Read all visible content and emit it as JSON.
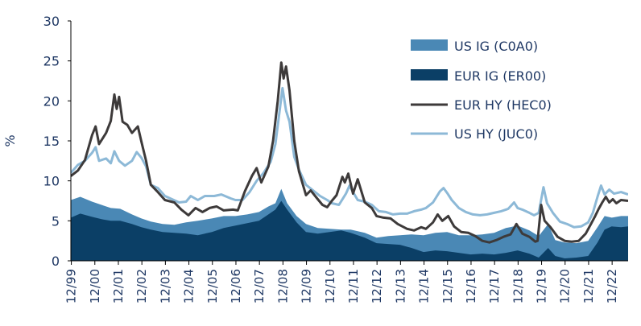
{
  "chart_data": {
    "type": "area",
    "ylabel": "%",
    "ylim": [
      0,
      30
    ],
    "yticks": [
      "0",
      "5",
      "10",
      "15",
      "20",
      "25",
      "30"
    ],
    "x_tick_labels": [
      "12/99",
      "12/00",
      "12/01",
      "12/02",
      "12/03",
      "12/04",
      "12/05",
      "12/06",
      "12/07",
      "12/08",
      "12/09",
      "12/10",
      "12/11",
      "12/12",
      "12/13",
      "12/14",
      "12/15",
      "12/16",
      "12/17",
      "12/18",
      "12/19",
      "12/20",
      "12/21",
      "12/22"
    ],
    "x_range": [
      1999.9,
      2023.6
    ],
    "legend_position": "top-right",
    "series": [
      {
        "name": "US IG (C0A0)",
        "style": "area",
        "color": "#4a88b5",
        "points": [
          [
            1999.9,
            7.6
          ],
          [
            2000.3,
            8.0
          ],
          [
            2000.8,
            7.4
          ],
          [
            2001.2,
            7.0
          ],
          [
            2001.6,
            6.6
          ],
          [
            2002.0,
            6.5
          ],
          [
            2002.5,
            5.8
          ],
          [
            2002.9,
            5.3
          ],
          [
            2003.3,
            4.9
          ],
          [
            2003.8,
            4.6
          ],
          [
            2004.3,
            4.5
          ],
          [
            2004.8,
            4.8
          ],
          [
            2005.3,
            5.0
          ],
          [
            2005.9,
            5.3
          ],
          [
            2006.4,
            5.6
          ],
          [
            2006.9,
            5.6
          ],
          [
            2007.4,
            5.8
          ],
          [
            2007.9,
            6.1
          ],
          [
            2008.3,
            6.8
          ],
          [
            2008.6,
            7.2
          ],
          [
            2008.85,
            9.0
          ],
          [
            2009.1,
            7.2
          ],
          [
            2009.5,
            5.6
          ],
          [
            2009.9,
            4.6
          ],
          [
            2010.4,
            4.1
          ],
          [
            2010.9,
            4.0
          ],
          [
            2011.4,
            3.9
          ],
          [
            2011.8,
            3.9
          ],
          [
            2012.4,
            3.5
          ],
          [
            2012.9,
            2.9
          ],
          [
            2013.4,
            3.1
          ],
          [
            2013.9,
            3.2
          ],
          [
            2014.4,
            3.3
          ],
          [
            2014.9,
            3.2
          ],
          [
            2015.4,
            3.5
          ],
          [
            2015.9,
            3.6
          ],
          [
            2016.4,
            3.2
          ],
          [
            2016.9,
            3.2
          ],
          [
            2017.4,
            3.3
          ],
          [
            2017.9,
            3.5
          ],
          [
            2018.4,
            4.1
          ],
          [
            2018.9,
            4.4
          ],
          [
            2019.4,
            3.8
          ],
          [
            2019.8,
            3.1
          ],
          [
            2020.2,
            4.6
          ],
          [
            2020.5,
            2.6
          ],
          [
            2020.9,
            2.3
          ],
          [
            2021.4,
            2.2
          ],
          [
            2021.9,
            2.5
          ],
          [
            2022.3,
            4.2
          ],
          [
            2022.6,
            5.6
          ],
          [
            2022.9,
            5.4
          ],
          [
            2023.3,
            5.6
          ],
          [
            2023.6,
            5.6
          ]
        ]
      },
      {
        "name": "EUR IG (ER00)",
        "style": "area",
        "color": "#0b3f66",
        "points": [
          [
            1999.9,
            5.4
          ],
          [
            2000.3,
            5.9
          ],
          [
            2000.8,
            5.5
          ],
          [
            2001.2,
            5.2
          ],
          [
            2001.6,
            5.0
          ],
          [
            2002.0,
            5.0
          ],
          [
            2002.5,
            4.6
          ],
          [
            2002.9,
            4.2
          ],
          [
            2003.3,
            3.9
          ],
          [
            2003.8,
            3.6
          ],
          [
            2004.3,
            3.5
          ],
          [
            2004.8,
            3.4
          ],
          [
            2005.3,
            3.2
          ],
          [
            2005.9,
            3.6
          ],
          [
            2006.4,
            4.1
          ],
          [
            2006.9,
            4.4
          ],
          [
            2007.4,
            4.7
          ],
          [
            2007.9,
            5.0
          ],
          [
            2008.3,
            5.8
          ],
          [
            2008.6,
            6.4
          ],
          [
            2008.85,
            7.5
          ],
          [
            2009.1,
            6.4
          ],
          [
            2009.5,
            4.8
          ],
          [
            2009.9,
            3.6
          ],
          [
            2010.4,
            3.4
          ],
          [
            2010.9,
            3.6
          ],
          [
            2011.4,
            3.8
          ],
          [
            2011.8,
            3.5
          ],
          [
            2012.4,
            2.9
          ],
          [
            2012.9,
            2.2
          ],
          [
            2013.4,
            2.1
          ],
          [
            2013.9,
            2.0
          ],
          [
            2014.4,
            1.6
          ],
          [
            2014.9,
            1.1
          ],
          [
            2015.4,
            1.3
          ],
          [
            2015.9,
            1.2
          ],
          [
            2016.4,
            1.0
          ],
          [
            2016.9,
            0.8
          ],
          [
            2017.4,
            0.9
          ],
          [
            2017.9,
            0.8
          ],
          [
            2018.4,
            1.0
          ],
          [
            2018.9,
            1.3
          ],
          [
            2019.4,
            0.9
          ],
          [
            2019.8,
            0.4
          ],
          [
            2020.2,
            1.6
          ],
          [
            2020.5,
            0.6
          ],
          [
            2020.9,
            0.3
          ],
          [
            2021.4,
            0.4
          ],
          [
            2021.9,
            0.6
          ],
          [
            2022.3,
            2.3
          ],
          [
            2022.6,
            3.9
          ],
          [
            2022.9,
            4.3
          ],
          [
            2023.3,
            4.2
          ],
          [
            2023.6,
            4.3
          ]
        ]
      },
      {
        "name": "EUR HY (HEC0)",
        "style": "line",
        "color": "#3d3a3a",
        "points": [
          [
            1999.9,
            10.6
          ],
          [
            2000.2,
            11.3
          ],
          [
            2000.5,
            12.6
          ],
          [
            2000.8,
            15.7
          ],
          [
            2000.95,
            16.8
          ],
          [
            2001.1,
            14.6
          ],
          [
            2001.4,
            16.0
          ],
          [
            2001.6,
            17.5
          ],
          [
            2001.75,
            20.8
          ],
          [
            2001.85,
            19.0
          ],
          [
            2001.95,
            20.5
          ],
          [
            2002.1,
            17.4
          ],
          [
            2002.3,
            17.0
          ],
          [
            2002.5,
            16.0
          ],
          [
            2002.75,
            16.8
          ],
          [
            2002.9,
            14.9
          ],
          [
            2003.1,
            12.5
          ],
          [
            2003.3,
            9.5
          ],
          [
            2003.6,
            8.6
          ],
          [
            2003.9,
            7.6
          ],
          [
            2004.3,
            7.3
          ],
          [
            2004.6,
            6.4
          ],
          [
            2004.9,
            5.7
          ],
          [
            2005.2,
            6.6
          ],
          [
            2005.5,
            6.1
          ],
          [
            2005.8,
            6.6
          ],
          [
            2006.1,
            6.8
          ],
          [
            2006.4,
            6.3
          ],
          [
            2006.8,
            6.4
          ],
          [
            2007.0,
            6.3
          ],
          [
            2007.3,
            8.7
          ],
          [
            2007.6,
            10.6
          ],
          [
            2007.8,
            11.6
          ],
          [
            2008.0,
            9.8
          ],
          [
            2008.3,
            11.8
          ],
          [
            2008.5,
            15.0
          ],
          [
            2008.7,
            20.0
          ],
          [
            2008.85,
            24.8
          ],
          [
            2008.95,
            22.8
          ],
          [
            2009.05,
            24.3
          ],
          [
            2009.2,
            21.3
          ],
          [
            2009.4,
            15.0
          ],
          [
            2009.6,
            11.2
          ],
          [
            2009.9,
            8.2
          ],
          [
            2010.1,
            8.8
          ],
          [
            2010.4,
            7.7
          ],
          [
            2010.6,
            7.0
          ],
          [
            2010.8,
            6.7
          ],
          [
            2011.0,
            7.5
          ],
          [
            2011.2,
            8.2
          ],
          [
            2011.45,
            10.5
          ],
          [
            2011.55,
            9.8
          ],
          [
            2011.7,
            10.9
          ],
          [
            2011.9,
            8.4
          ],
          [
            2012.1,
            10.2
          ],
          [
            2012.4,
            7.3
          ],
          [
            2012.7,
            6.6
          ],
          [
            2012.9,
            5.6
          ],
          [
            2013.2,
            5.4
          ],
          [
            2013.5,
            5.3
          ],
          [
            2013.8,
            4.6
          ],
          [
            2014.2,
            4.0
          ],
          [
            2014.5,
            3.8
          ],
          [
            2014.8,
            4.2
          ],
          [
            2015.0,
            4.0
          ],
          [
            2015.3,
            4.8
          ],
          [
            2015.5,
            5.8
          ],
          [
            2015.7,
            5.0
          ],
          [
            2015.95,
            5.6
          ],
          [
            2016.2,
            4.3
          ],
          [
            2016.5,
            3.6
          ],
          [
            2016.8,
            3.5
          ],
          [
            2017.1,
            3.1
          ],
          [
            2017.4,
            2.5
          ],
          [
            2017.7,
            2.3
          ],
          [
            2018.0,
            2.6
          ],
          [
            2018.3,
            3.0
          ],
          [
            2018.6,
            3.3
          ],
          [
            2018.85,
            4.6
          ],
          [
            2019.1,
            3.4
          ],
          [
            2019.4,
            3.0
          ],
          [
            2019.65,
            2.4
          ],
          [
            2019.75,
            2.5
          ],
          [
            2019.9,
            7.0
          ],
          [
            2020.05,
            5.0
          ],
          [
            2020.3,
            4.2
          ],
          [
            2020.6,
            3.0
          ],
          [
            2020.9,
            2.5
          ],
          [
            2021.2,
            2.4
          ],
          [
            2021.5,
            2.5
          ],
          [
            2021.8,
            3.4
          ],
          [
            2022.0,
            4.5
          ],
          [
            2022.2,
            5.6
          ],
          [
            2022.35,
            6.5
          ],
          [
            2022.5,
            7.3
          ],
          [
            2022.65,
            8.0
          ],
          [
            2022.8,
            7.3
          ],
          [
            2022.95,
            7.7
          ],
          [
            2023.1,
            7.2
          ],
          [
            2023.3,
            7.6
          ],
          [
            2023.6,
            7.5
          ]
        ]
      },
      {
        "name": "US HY (JUC0)",
        "style": "line",
        "color": "#8db9d7",
        "points": [
          [
            1999.9,
            11.0
          ],
          [
            2000.2,
            12.0
          ],
          [
            2000.5,
            12.5
          ],
          [
            2000.8,
            13.5
          ],
          [
            2000.95,
            14.2
          ],
          [
            2001.1,
            12.5
          ],
          [
            2001.4,
            12.8
          ],
          [
            2001.6,
            12.2
          ],
          [
            2001.75,
            13.7
          ],
          [
            2001.95,
            12.5
          ],
          [
            2002.2,
            11.9
          ],
          [
            2002.5,
            12.5
          ],
          [
            2002.7,
            13.6
          ],
          [
            2002.9,
            12.9
          ],
          [
            2003.1,
            11.8
          ],
          [
            2003.3,
            9.5
          ],
          [
            2003.6,
            9.1
          ],
          [
            2003.9,
            8.1
          ],
          [
            2004.2,
            7.7
          ],
          [
            2004.5,
            7.3
          ],
          [
            2004.8,
            7.4
          ],
          [
            2005.0,
            8.1
          ],
          [
            2005.3,
            7.6
          ],
          [
            2005.6,
            8.1
          ],
          [
            2006.0,
            8.1
          ],
          [
            2006.3,
            8.3
          ],
          [
            2006.7,
            7.8
          ],
          [
            2006.9,
            7.6
          ],
          [
            2007.2,
            7.6
          ],
          [
            2007.5,
            8.6
          ],
          [
            2007.8,
            10.0
          ],
          [
            2008.1,
            11.0
          ],
          [
            2008.4,
            12.4
          ],
          [
            2008.6,
            14.6
          ],
          [
            2008.8,
            19.3
          ],
          [
            2008.9,
            21.6
          ],
          [
            2009.05,
            18.8
          ],
          [
            2009.2,
            17.4
          ],
          [
            2009.4,
            13.0
          ],
          [
            2009.6,
            11.4
          ],
          [
            2009.9,
            9.5
          ],
          [
            2010.2,
            8.8
          ],
          [
            2010.5,
            8.1
          ],
          [
            2010.8,
            7.6
          ],
          [
            2011.0,
            7.2
          ],
          [
            2011.3,
            7.0
          ],
          [
            2011.6,
            8.4
          ],
          [
            2011.75,
            9.4
          ],
          [
            2011.9,
            8.6
          ],
          [
            2012.1,
            7.6
          ],
          [
            2012.4,
            7.4
          ],
          [
            2012.7,
            7.0
          ],
          [
            2013.0,
            6.2
          ],
          [
            2013.3,
            6.1
          ],
          [
            2013.6,
            5.8
          ],
          [
            2013.9,
            5.9
          ],
          [
            2014.2,
            5.9
          ],
          [
            2014.5,
            6.2
          ],
          [
            2014.8,
            6.4
          ],
          [
            2015.0,
            6.6
          ],
          [
            2015.3,
            7.3
          ],
          [
            2015.6,
            8.7
          ],
          [
            2015.75,
            9.1
          ],
          [
            2015.9,
            8.5
          ],
          [
            2016.1,
            7.6
          ],
          [
            2016.4,
            6.6
          ],
          [
            2016.7,
            6.1
          ],
          [
            2017.0,
            5.8
          ],
          [
            2017.3,
            5.7
          ],
          [
            2017.6,
            5.8
          ],
          [
            2017.9,
            6.0
          ],
          [
            2018.2,
            6.2
          ],
          [
            2018.5,
            6.5
          ],
          [
            2018.75,
            7.3
          ],
          [
            2018.9,
            6.6
          ],
          [
            2019.1,
            6.4
          ],
          [
            2019.4,
            6.0
          ],
          [
            2019.6,
            5.7
          ],
          [
            2019.8,
            6.0
          ],
          [
            2020.0,
            9.2
          ],
          [
            2020.15,
            7.2
          ],
          [
            2020.4,
            6.0
          ],
          [
            2020.7,
            4.9
          ],
          [
            2021.0,
            4.6
          ],
          [
            2021.3,
            4.2
          ],
          [
            2021.6,
            4.3
          ],
          [
            2021.9,
            4.8
          ],
          [
            2022.1,
            6.0
          ],
          [
            2022.3,
            8.0
          ],
          [
            2022.45,
            9.4
          ],
          [
            2022.6,
            8.3
          ],
          [
            2022.8,
            8.9
          ],
          [
            2023.0,
            8.4
          ],
          [
            2023.3,
            8.6
          ],
          [
            2023.6,
            8.3
          ]
        ]
      }
    ]
  }
}
